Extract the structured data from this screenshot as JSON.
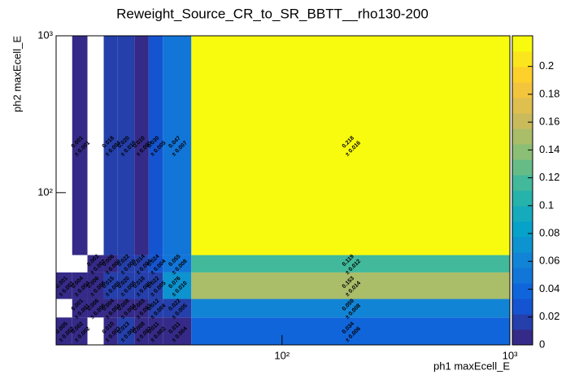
{
  "chart_data": {
    "type": "heatmap",
    "title": "Reweight_Source_CR_to_SR_BBTT__rho130-200",
    "x_label": "ph1 maxEcell_E",
    "y_label": "ph2 maxEcell_E",
    "log_x": true,
    "log_y": true,
    "xlim": [
      10.2,
      1000
    ],
    "ylim": [
      10.7,
      1000
    ],
    "xticks": [
      {
        "value": 100,
        "label": "10²"
      },
      {
        "value": 1000,
        "label": "10³"
      }
    ],
    "yticks": [
      {
        "value": 100,
        "label": "10²"
      },
      {
        "value": 1000,
        "label": "10³"
      }
    ],
    "x_edges": [
      10.2,
      12,
      14,
      16.5,
      19,
      22.5,
      26,
      30,
      40,
      1000
    ],
    "y_edges": [
      10.7,
      16,
      21,
      31,
      40,
      1000
    ],
    "z": [
      [
        0.005,
        0.002,
        null,
        0.01,
        0.013,
        0.008,
        0.011,
        0.011,
        0.034
      ],
      [
        null,
        0.001,
        0.006,
        0.004,
        0.008,
        0.003,
        0.012,
        0.022,
        0.059
      ],
      [
        0.001,
        0.004,
        0.006,
        0.015,
        0.02,
        0.018,
        0.022,
        0.076,
        0.153
      ],
      [
        null,
        null,
        0.002,
        0.006,
        0.022,
        0.014,
        0.024,
        0.055,
        0.119
      ],
      [
        null,
        0.001,
        null,
        0.018,
        0.02,
        0.01,
        0.03,
        0.047,
        0.218
      ]
    ],
    "z_labels": [
      [
        "0.005",
        "0.002",
        null,
        "0.010",
        "0.013",
        "0.008",
        "0.011",
        "0.011",
        "0.034"
      ],
      [
        null,
        "0.001",
        "0.006",
        "0.004",
        "0.008",
        "0.003",
        "0.012",
        "0.022",
        "0.059"
      ],
      [
        "0.001",
        "0.004",
        "0.006",
        "0.015",
        "0.020",
        "0.018",
        "0.022",
        "0.076",
        "0.153"
      ],
      [
        null,
        null,
        "0.002",
        "0.006",
        "0.022",
        "0.014",
        "0.024",
        "0.055",
        "0.119"
      ],
      [
        null,
        "0.001",
        null,
        "0.018",
        "0.020",
        "0.010",
        "0.030",
        "0.047",
        "0.218"
      ]
    ],
    "errors": [
      [
        0.002,
        0.002,
        null,
        0.003,
        0.004,
        0.002,
        0.002,
        0.004,
        0.006
      ],
      [
        null,
        0.001,
        0.006,
        0.004,
        0.004,
        0.003,
        0.004,
        0.005,
        0.008
      ],
      [
        0.001,
        0.004,
        0.006,
        0.005,
        0.005,
        0.005,
        0.005,
        0.01,
        0.014
      ],
      [
        null,
        null,
        0.002,
        0.006,
        0.009,
        0.004,
        0.004,
        0.008,
        0.012
      ],
      [
        null,
        0.001,
        null,
        0.004,
        0.01,
        0.005,
        0.005,
        0.007,
        0.016
      ]
    ],
    "error_labels": [
      [
        "± 0.002",
        "± 0.002",
        null,
        "± 0.003",
        "± 0.004",
        "± 0.002",
        "± 0.002",
        "± 0.004",
        "± 0.006"
      ],
      [
        null,
        "± 0.001",
        "± 0.006",
        "± 0.004",
        "± 0.004",
        "± 0.003",
        "± 0.004",
        "± 0.005",
        "± 0.008"
      ],
      [
        "± 0.001",
        "± 0.004",
        "± 0.006",
        "± 0.005",
        "± 0.005",
        "± 0.005",
        "± 0.005",
        "± 0.010",
        "± 0.014"
      ],
      [
        null,
        null,
        "± 0.002",
        "± 0.006",
        "± 0.009",
        "± 0.004",
        "± 0.004",
        "± 0.008",
        "± 0.012"
      ],
      [
        null,
        "± 0.001",
        null,
        "± 0.004",
        "± 0.010",
        "± 0.005",
        "± 0.005",
        "± 0.007",
        "± 0.016"
      ]
    ],
    "zlim": [
      0,
      0.222
    ],
    "zticks": [
      0,
      0.02,
      0.04,
      0.06,
      0.08,
      0.1,
      0.12,
      0.14,
      0.16,
      0.18,
      0.2
    ]
  }
}
